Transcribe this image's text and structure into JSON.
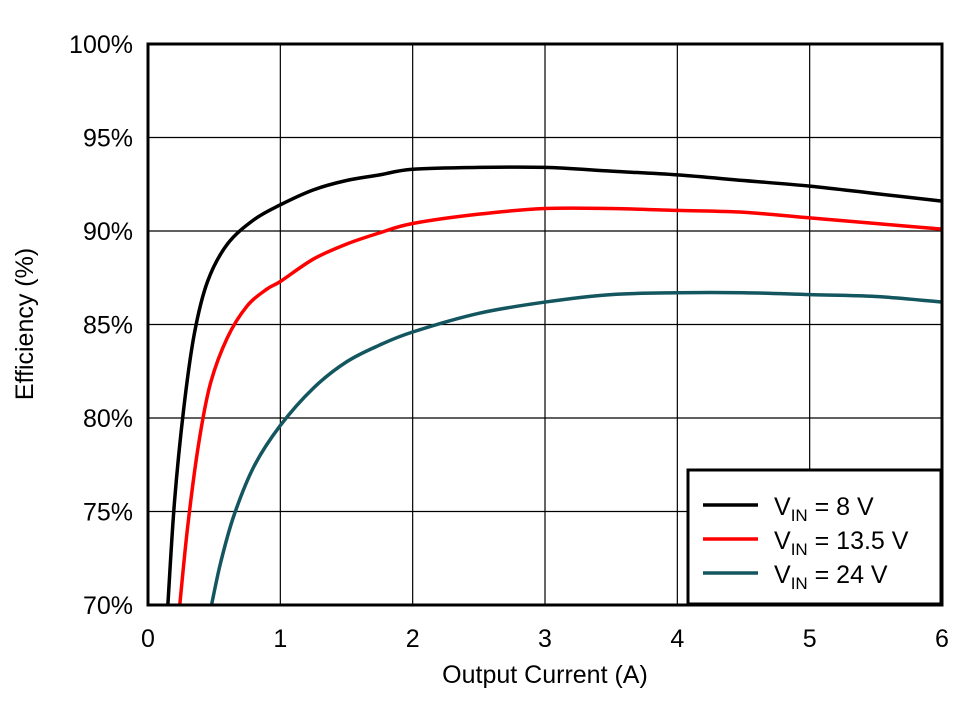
{
  "chart_data": {
    "type": "line",
    "title": "",
    "xlabel": "Output Current (A)",
    "ylabel": "Efficiency (%)",
    "xlim": [
      0,
      6
    ],
    "ylim": [
      70,
      100
    ],
    "grid": true,
    "legend_position": "lower right",
    "x_ticks": [
      "0",
      "1",
      "2",
      "3",
      "4",
      "5",
      "6"
    ],
    "y_ticks": [
      "70%",
      "75%",
      "80%",
      "85%",
      "90%",
      "95%",
      "100%"
    ],
    "series": [
      {
        "name": "VIN = 8 V",
        "label_main": "V",
        "label_sub": "IN",
        "label_rest": " = 8 V",
        "color": "#000000",
        "x": [
          0.15,
          0.2,
          0.27,
          0.35,
          0.45,
          0.6,
          0.8,
          1.0,
          1.25,
          1.5,
          1.75,
          2.0,
          2.5,
          3.0,
          3.5,
          4.0,
          4.5,
          5.0,
          5.5,
          6.0
        ],
        "y": [
          70.0,
          75.5,
          80.5,
          84.5,
          87.3,
          89.3,
          90.6,
          91.4,
          92.2,
          92.7,
          93.0,
          93.3,
          93.4,
          93.4,
          93.2,
          93.0,
          92.7,
          92.4,
          92.0,
          91.6
        ]
      },
      {
        "name": "VIN = 13.5 V",
        "label_main": "V",
        "label_sub": "IN",
        "label_rest": " = 13.5 V",
        "color": "#ff0000",
        "x": [
          0.24,
          0.3,
          0.38,
          0.47,
          0.6,
          0.75,
          0.9,
          1.0,
          1.25,
          1.5,
          1.75,
          2.0,
          2.5,
          3.0,
          3.5,
          4.0,
          4.5,
          5.0,
          5.5,
          6.0
        ],
        "y": [
          70.0,
          74.2,
          78.5,
          81.8,
          84.3,
          86.0,
          86.9,
          87.3,
          88.5,
          89.3,
          89.9,
          90.4,
          90.9,
          91.2,
          91.2,
          91.1,
          91.0,
          90.7,
          90.4,
          90.1
        ]
      },
      {
        "name": "VIN = 24 V",
        "label_main": "V",
        "label_sub": "IN",
        "label_rest": " = 24 V",
        "color": "#14565f",
        "x": [
          0.48,
          0.55,
          0.65,
          0.8,
          1.0,
          1.25,
          1.5,
          1.75,
          2.0,
          2.5,
          3.0,
          3.5,
          4.0,
          4.5,
          5.0,
          5.5,
          6.0
        ],
        "y": [
          70.0,
          72.3,
          74.8,
          77.4,
          79.6,
          81.6,
          83.0,
          83.9,
          84.6,
          85.6,
          86.2,
          86.6,
          86.7,
          86.7,
          86.6,
          86.5,
          86.2
        ]
      }
    ]
  }
}
